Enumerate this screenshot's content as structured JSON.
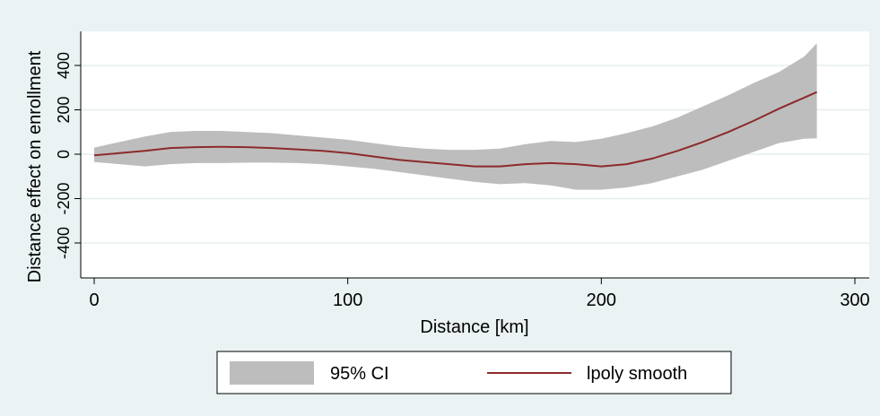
{
  "chart_data": {
    "type": "area",
    "title": "",
    "xlabel": "Distance [km]",
    "ylabel": "Distance effect on enrollment",
    "xlim": [
      -5,
      305
    ],
    "ylim": [
      -560,
      550
    ],
    "x_ticks": [
      0,
      100,
      200,
      300
    ],
    "y_ticks": [
      -400,
      -200,
      0,
      200,
      400
    ],
    "x_tick_labels": [
      "0",
      "100",
      "200",
      "300"
    ],
    "y_tick_labels": [
      "-400",
      "-200",
      "0",
      "200",
      "400"
    ],
    "grid": true,
    "legend_position": "bottom",
    "colors": {
      "ci_band": "#bdbdbd",
      "smooth_line": "#8c2b2b",
      "plot_bg": "#ffffff",
      "outer_bg": "#eaf2f3",
      "grid": "#e6eef0"
    },
    "series": [
      {
        "name": "95% CI",
        "kind": "band",
        "x": [
          0,
          10,
          20,
          30,
          40,
          50,
          60,
          70,
          80,
          90,
          100,
          110,
          120,
          130,
          140,
          150,
          160,
          170,
          180,
          190,
          200,
          210,
          220,
          230,
          240,
          250,
          260,
          270,
          280,
          285
        ],
        "lower": [
          -35,
          -45,
          -55,
          -45,
          -40,
          -40,
          -38,
          -38,
          -40,
          -45,
          -55,
          -65,
          -80,
          -95,
          -110,
          -125,
          -135,
          -130,
          -140,
          -160,
          -160,
          -150,
          -130,
          -100,
          -70,
          -30,
          10,
          50,
          70,
          72
        ],
        "upper": [
          30,
          55,
          80,
          100,
          105,
          105,
          100,
          95,
          85,
          75,
          65,
          50,
          35,
          25,
          20,
          20,
          25,
          45,
          60,
          55,
          70,
          95,
          125,
          165,
          215,
          265,
          320,
          370,
          440,
          500
        ]
      },
      {
        "name": "lpoly smooth",
        "kind": "line",
        "x": [
          0,
          10,
          20,
          30,
          40,
          50,
          60,
          70,
          80,
          90,
          100,
          110,
          120,
          130,
          140,
          150,
          160,
          170,
          180,
          190,
          200,
          210,
          220,
          230,
          240,
          250,
          260,
          270,
          280,
          285
        ],
        "values": [
          -5,
          5,
          15,
          28,
          32,
          33,
          32,
          28,
          22,
          15,
          5,
          -10,
          -25,
          -35,
          -45,
          -55,
          -55,
          -45,
          -40,
          -45,
          -55,
          -45,
          -20,
          15,
          55,
          100,
          150,
          205,
          255,
          280
        ]
      }
    ],
    "legend": [
      {
        "label": "95% CI",
        "swatch": "band"
      },
      {
        "label": "lpoly smooth",
        "swatch": "line"
      }
    ]
  }
}
